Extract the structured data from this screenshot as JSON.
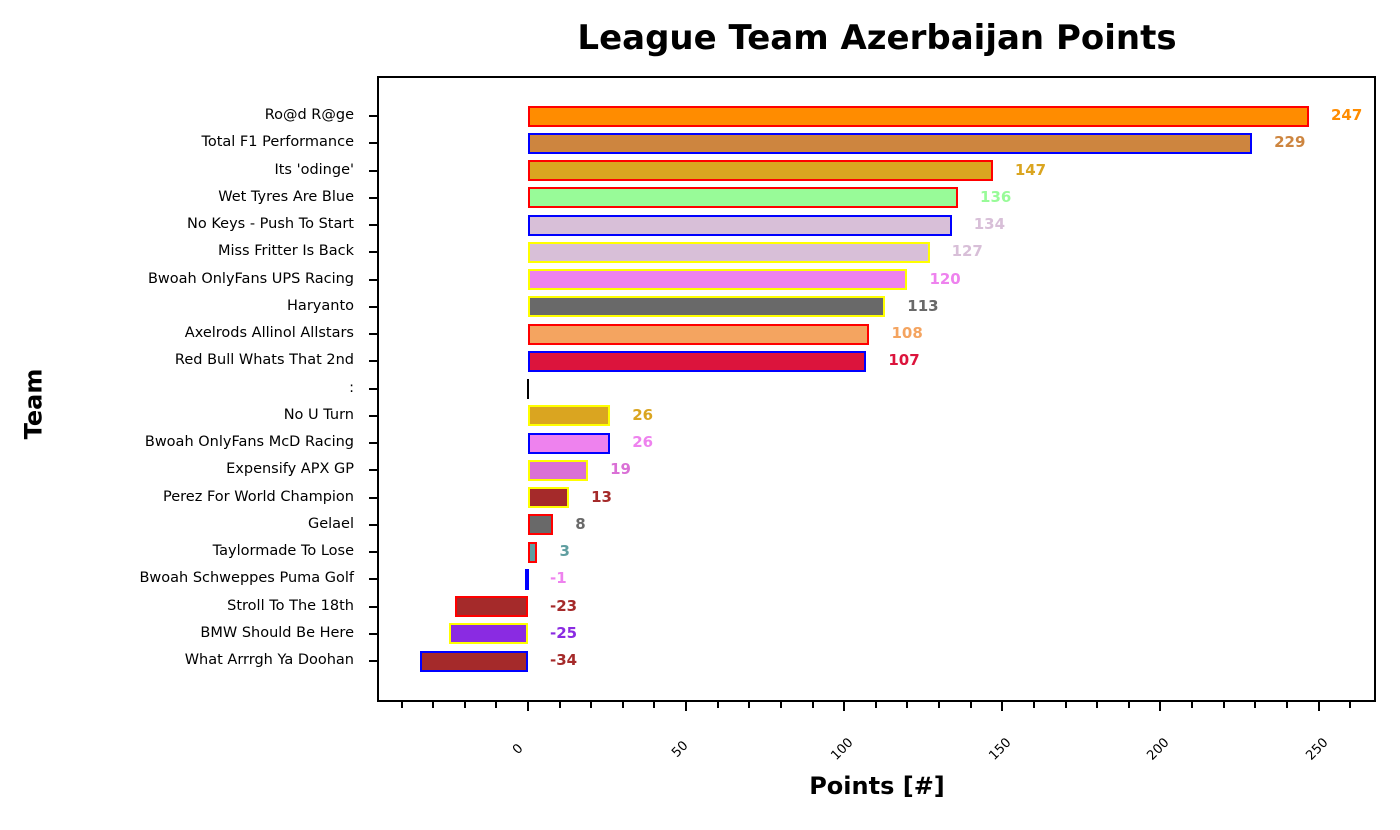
{
  "chart_data": {
    "type": "bar",
    "orientation": "horizontal",
    "title": "League Team Azerbaijan Points",
    "xlabel": "Points [#]",
    "ylabel": "Team",
    "xlim": [
      -48,
      268
    ],
    "xticks": [
      0,
      50,
      100,
      150,
      200,
      250
    ],
    "grid": false,
    "legend": null,
    "categories": [
      "Ro@d R@ge",
      "Total F1 Performance",
      "Its 'odinge'",
      "Wet Tyres Are Blue",
      "No Keys - Push To Start",
      "Miss Fritter Is Back",
      "Bwoah OnlyFans UPS Racing",
      "Haryanto",
      "Axelrods Allinol Allstars",
      "Red Bull Whats That 2nd",
      ":",
      "No U Turn",
      "Bwoah OnlyFans McD Racing",
      "Expensify APX GP",
      "Perez For World Champion",
      "Gelael",
      "Taylormade To Lose",
      "Bwoah Schweppes Puma Golf",
      "Stroll To The 18th",
      "BMW Should Be Here",
      "What Arrrgh Ya Doohan"
    ],
    "values": [
      247,
      229,
      147,
      136,
      134,
      127,
      120,
      113,
      108,
      107,
      null,
      26,
      26,
      19,
      13,
      8,
      3,
      -1,
      -23,
      -25,
      -34
    ],
    "fill_colors": [
      "#ff8c00",
      "#cd853f",
      "#daa520",
      "#98fb98",
      "#d8bfd8",
      "#d8bfd8",
      "#ee82ee",
      "#696969",
      "#f4a460",
      "#dc143c",
      null,
      "#daa520",
      "#ee82ee",
      "#da70d6",
      "#a52a2a",
      "#696969",
      "#5f9ea0",
      "#0000ff",
      "#a52a2a",
      "#8a2be2",
      "#a52a2a"
    ],
    "edge_colors": [
      "#ff0000",
      "#0000ff",
      "#ff0000",
      "#ff0000",
      "#0000ff",
      "#ffff00",
      "#ffff00",
      "#ffff00",
      "#ff0000",
      "#0000ff",
      null,
      "#ffff00",
      "#0000ff",
      "#ffff00",
      "#ffff00",
      "#ff0000",
      "#ff0000",
      "#0000ff",
      "#ff0000",
      "#ffff00",
      "#0000ff"
    ],
    "label_colors": [
      "#ff8c00",
      "#cd853f",
      "#daa520",
      "#98fb98",
      "#d8bfd8",
      "#d8bfd8",
      "#ee82ee",
      "#696969",
      "#f4a460",
      "#dc143c",
      null,
      "#daa520",
      "#ee82ee",
      "#da70d6",
      "#a52a2a",
      "#696969",
      "#5f9ea0",
      "#ee82ee",
      "#a52a2a",
      "#8a2be2",
      "#a52a2a"
    ]
  }
}
